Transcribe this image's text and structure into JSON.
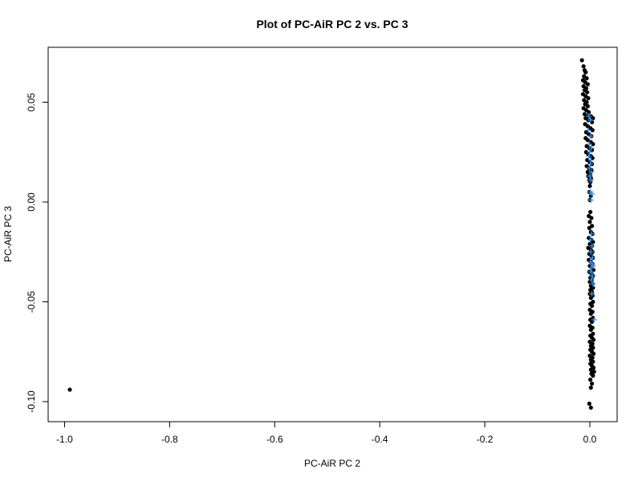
{
  "chart_data": {
    "type": "scatter",
    "title": "Plot of PC-AiR PC 2 vs. PC 3",
    "xlabel": "PC-AiR PC 2",
    "ylabel": "PC-AiR PC 3",
    "xlim": [
      -1.0,
      0.05
    ],
    "ylim": [
      -0.105,
      0.077
    ],
    "x_ticks": [
      "-1.0",
      "-0.8",
      "-0.6",
      "-0.4",
      "-0.2",
      "0.0"
    ],
    "y_ticks": [
      "-0.10",
      "-0.05",
      "0.00",
      "0.05"
    ],
    "grid": false,
    "legend": "none",
    "series": [
      {
        "marker": "filled-circle",
        "color": "#000000",
        "points": [
          [
            -0.99,
            -0.094
          ],
          [
            -0.015,
            0.071
          ],
          [
            -0.012,
            0.068
          ],
          [
            -0.01,
            0.066
          ],
          [
            -0.008,
            0.065
          ],
          [
            -0.011,
            0.063
          ],
          [
            -0.006,
            0.062
          ],
          [
            -0.013,
            0.061
          ],
          [
            -0.009,
            0.06
          ],
          [
            -0.004,
            0.059
          ],
          [
            -0.012,
            0.058
          ],
          [
            -0.007,
            0.057
          ],
          [
            -0.01,
            0.056
          ],
          [
            -0.005,
            0.055
          ],
          [
            -0.013,
            0.054
          ],
          [
            -0.008,
            0.053
          ],
          [
            -0.003,
            0.052
          ],
          [
            -0.011,
            0.051
          ],
          [
            -0.006,
            0.05
          ],
          [
            -0.009,
            0.049
          ],
          [
            -0.004,
            0.048
          ],
          [
            -0.012,
            0.047
          ],
          [
            -0.007,
            0.046
          ],
          [
            -0.002,
            0.045
          ],
          [
            -0.01,
            0.044
          ],
          [
            -0.005,
            0.043
          ],
          [
            0.002,
            0.043
          ],
          [
            0.006,
            0.042
          ],
          [
            -0.008,
            0.042
          ],
          [
            -0.003,
            0.041
          ],
          [
            0.004,
            0.04
          ],
          [
            -0.009,
            0.039
          ],
          [
            -0.004,
            0.038
          ],
          [
            0.001,
            0.037
          ],
          [
            0.005,
            0.036
          ],
          [
            -0.007,
            0.035
          ],
          [
            -0.002,
            0.034
          ],
          [
            0.003,
            0.033
          ],
          [
            -0.008,
            0.032
          ],
          [
            -0.004,
            0.031
          ],
          [
            0.002,
            0.03
          ],
          [
            0.006,
            0.029
          ],
          [
            -0.006,
            0.028
          ],
          [
            -0.001,
            0.027
          ],
          [
            0.004,
            0.026
          ],
          [
            -0.007,
            0.025
          ],
          [
            -0.003,
            0.024
          ],
          [
            0.002,
            0.023
          ],
          [
            0.005,
            0.022
          ],
          [
            -0.005,
            0.021
          ],
          [
            0.0,
            0.02
          ],
          [
            0.004,
            0.019
          ],
          [
            -0.006,
            0.018
          ],
          [
            -0.002,
            0.017
          ],
          [
            0.003,
            0.016
          ],
          [
            -0.004,
            0.015
          ],
          [
            0.001,
            0.014
          ],
          [
            -0.003,
            0.013
          ],
          [
            0.002,
            0.012
          ],
          [
            -0.001,
            0.011
          ],
          [
            0.001,
            0.01
          ],
          [
            0.0,
            0.008
          ],
          [
            -0.001,
            0.005
          ],
          [
            0.002,
            0.003
          ],
          [
            0.0,
            0.001
          ],
          [
            0.001,
            -0.005
          ],
          [
            -0.002,
            -0.007
          ],
          [
            0.003,
            -0.008
          ],
          [
            0.0,
            -0.01
          ],
          [
            0.004,
            -0.012
          ],
          [
            -0.001,
            -0.013
          ],
          [
            0.002,
            -0.015
          ],
          [
            0.005,
            -0.016
          ],
          [
            -0.002,
            -0.018
          ],
          [
            0.003,
            -0.019
          ],
          [
            0.006,
            -0.02
          ],
          [
            0.0,
            -0.021
          ],
          [
            0.004,
            -0.022
          ],
          [
            -0.003,
            -0.023
          ],
          [
            0.002,
            -0.024
          ],
          [
            0.005,
            -0.025
          ],
          [
            -0.001,
            -0.026
          ],
          [
            0.003,
            -0.027
          ],
          [
            0.006,
            -0.028
          ],
          [
            -0.002,
            -0.029
          ],
          [
            0.002,
            -0.03
          ],
          [
            0.005,
            -0.031
          ],
          [
            0.0,
            -0.032
          ],
          [
            0.004,
            -0.033
          ],
          [
            0.007,
            -0.034
          ],
          [
            -0.001,
            -0.035
          ],
          [
            0.003,
            -0.036
          ],
          [
            0.006,
            -0.037
          ],
          [
            0.001,
            -0.038
          ],
          [
            0.004,
            -0.039
          ],
          [
            0.0,
            -0.04
          ],
          [
            0.005,
            -0.041
          ],
          [
            0.002,
            -0.042
          ],
          [
            0.006,
            -0.043
          ],
          [
            0.001,
            -0.044
          ],
          [
            0.004,
            -0.045
          ],
          [
            0.0,
            -0.046
          ],
          [
            0.005,
            -0.047
          ],
          [
            0.002,
            -0.048
          ],
          [
            0.006,
            -0.05
          ],
          [
            0.001,
            -0.051
          ],
          [
            0.004,
            -0.052
          ],
          [
            0.0,
            -0.054
          ],
          [
            0.005,
            -0.055
          ],
          [
            0.002,
            -0.056
          ],
          [
            0.006,
            -0.058
          ],
          [
            0.001,
            -0.059
          ],
          [
            0.004,
            -0.06
          ],
          [
            0.0,
            -0.062
          ],
          [
            0.005,
            -0.063
          ],
          [
            0.002,
            -0.064
          ],
          [
            0.006,
            -0.066
          ],
          [
            0.001,
            -0.067
          ],
          [
            0.004,
            -0.068
          ],
          [
            0.007,
            -0.069
          ],
          [
            0.0,
            -0.07
          ],
          [
            0.005,
            -0.071
          ],
          [
            0.002,
            -0.072
          ],
          [
            0.006,
            -0.073
          ],
          [
            0.001,
            -0.074
          ],
          [
            0.004,
            -0.075
          ],
          [
            0.007,
            -0.076
          ],
          [
            0.0,
            -0.077
          ],
          [
            0.005,
            -0.078
          ],
          [
            0.002,
            -0.079
          ],
          [
            0.006,
            -0.08
          ],
          [
            0.001,
            -0.081
          ],
          [
            0.004,
            -0.082
          ],
          [
            0.007,
            -0.083
          ],
          [
            0.002,
            -0.084
          ],
          [
            0.005,
            -0.085
          ],
          [
            0.008,
            -0.085
          ],
          [
            0.003,
            -0.086
          ],
          [
            0.006,
            -0.087
          ],
          [
            0.001,
            -0.089
          ],
          [
            0.004,
            -0.091
          ],
          [
            0.002,
            -0.093
          ],
          [
            -0.001,
            -0.101
          ],
          [
            0.002,
            -0.103
          ]
        ]
      },
      {
        "marker": "plus",
        "color": "#3d8fe0",
        "points": [
          [
            -0.002,
            0.043
          ],
          [
            0.001,
            0.041
          ],
          [
            -0.003,
            0.036
          ],
          [
            0.002,
            0.033
          ],
          [
            -0.001,
            0.029
          ],
          [
            0.003,
            0.027
          ],
          [
            0.0,
            0.025
          ],
          [
            -0.002,
            0.023
          ],
          [
            0.002,
            0.021
          ],
          [
            0.001,
            0.019
          ],
          [
            -0.001,
            0.017
          ],
          [
            0.003,
            0.015
          ],
          [
            0.0,
            0.013
          ],
          [
            0.002,
            0.011
          ],
          [
            0.001,
            0.005
          ],
          [
            0.004,
            0.004
          ],
          [
            0.002,
            0.001
          ],
          [
            0.003,
            -0.016
          ],
          [
            0.001,
            -0.019
          ],
          [
            0.004,
            -0.022
          ],
          [
            0.002,
            -0.025
          ],
          [
            0.005,
            -0.028
          ],
          [
            0.001,
            -0.03
          ],
          [
            0.004,
            -0.031
          ],
          [
            0.006,
            -0.032
          ],
          [
            0.003,
            -0.033
          ],
          [
            0.002,
            -0.035
          ],
          [
            0.005,
            -0.037
          ],
          [
            0.003,
            -0.039
          ],
          [
            0.006,
            -0.041
          ],
          [
            0.004,
            -0.046
          ],
          [
            0.008,
            -0.059
          ]
        ]
      }
    ]
  }
}
